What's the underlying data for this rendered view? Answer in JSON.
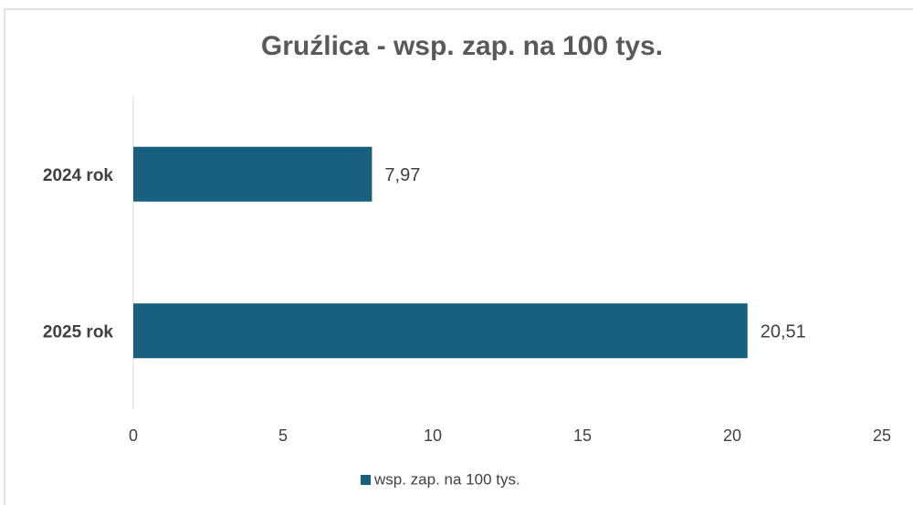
{
  "chart_data": {
    "type": "hbar",
    "title": "Gruźlica - wsp. zap. na 100 tys.",
    "categories": [
      "2024 rok",
      "2025 rok"
    ],
    "series": [
      {
        "name": "wsp. zap. na 100 tys.",
        "color": "#17607f",
        "values": [
          7.97,
          20.51
        ],
        "value_labels": [
          "7,97",
          "20,51"
        ]
      }
    ],
    "xlim": [
      0,
      25
    ],
    "xticks": [
      0,
      5,
      10,
      15,
      20,
      25
    ],
    "legend": "bottom"
  }
}
